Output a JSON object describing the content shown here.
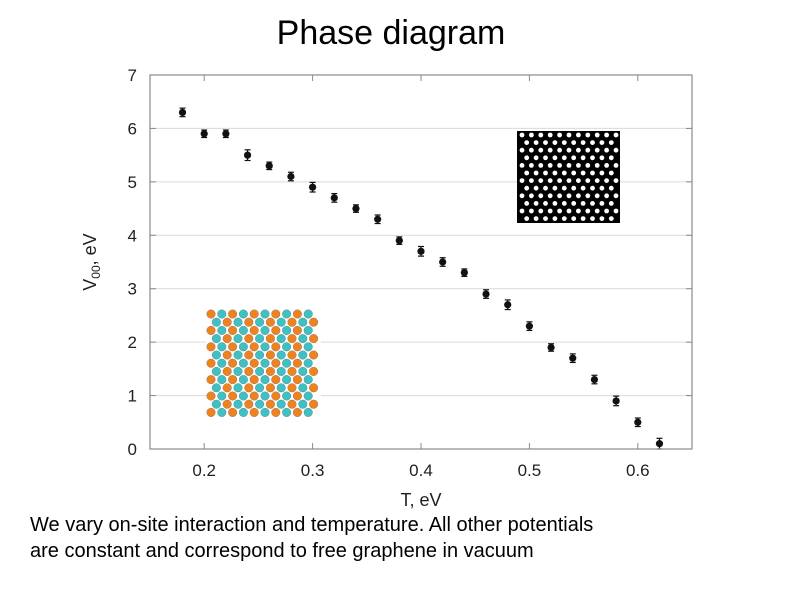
{
  "slide": {
    "title": "Phase diagram",
    "caption_line1": "We vary on-site interaction and temperature. All other potentials",
    "caption_line2": "are constant and correspond to free graphene in vacuum"
  },
  "colors": {
    "marker": "#111111",
    "frame": "#8a8a8a",
    "grid": "#d9d9d9",
    "lattice_black": "#000000",
    "atom_orange": "#f0821e",
    "atom_cyan": "#3ec1c3"
  },
  "chart_data": {
    "type": "scatter",
    "title": "",
    "xlabel": "T, eV",
    "ylabel_main": "V",
    "ylabel_sub": "00",
    "ylabel_tail": ", eV",
    "xlim": [
      0.15,
      0.65
    ],
    "ylim": [
      0,
      7
    ],
    "x_ticks": [
      0.2,
      0.3,
      0.4,
      0.5,
      0.6
    ],
    "x_tick_labels": [
      "0.2",
      "0.3",
      "0.4",
      "0.5",
      "0.6"
    ],
    "y_ticks": [
      0,
      1,
      2,
      3,
      4,
      5,
      6,
      7
    ],
    "y_tick_labels": [
      "0",
      "1",
      "2",
      "3",
      "4",
      "5",
      "6",
      "7"
    ],
    "grid": "horizontal",
    "error_bars": true,
    "insets": [
      "black-lattice (top-right)",
      "orange-cyan lattice (bottom-left)"
    ],
    "series": [
      {
        "x": [
          0.18,
          0.2,
          0.22,
          0.24,
          0.26,
          0.28,
          0.3,
          0.32,
          0.34,
          0.36,
          0.38,
          0.4,
          0.42,
          0.44,
          0.46,
          0.48,
          0.5,
          0.52,
          0.54,
          0.56,
          0.58,
          0.6,
          0.62
        ],
        "y": [
          6.3,
          5.9,
          5.9,
          5.5,
          5.3,
          5.1,
          4.9,
          4.7,
          4.5,
          4.3,
          3.9,
          3.7,
          3.5,
          3.3,
          2.9,
          2.7,
          2.3,
          1.9,
          1.7,
          1.3,
          0.9,
          0.5,
          0.1
        ],
        "err": [
          0.08,
          0.07,
          0.07,
          0.1,
          0.07,
          0.08,
          0.09,
          0.08,
          0.07,
          0.08,
          0.07,
          0.09,
          0.08,
          0.07,
          0.08,
          0.09,
          0.08,
          0.07,
          0.08,
          0.08,
          0.09,
          0.08,
          0.1
        ]
      }
    ]
  }
}
